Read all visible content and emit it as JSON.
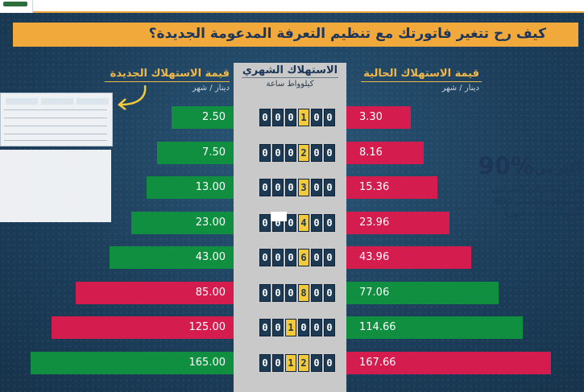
{
  "header": {
    "title": "كيف رح تتغير فاتورتك مع تنظيم التعرفة المدعومة الجديدة؟"
  },
  "columns": {
    "new_value": {
      "label": "قيمة الاستهلاك الجديدة",
      "unit": "دينار / شهر"
    },
    "monthly": {
      "label": "الاستهلاك الشهري",
      "unit": "كيلوواط ساعة"
    },
    "current_value": {
      "label": "قيمة الاستهلاك الحالية",
      "unit": "دينار / شهر"
    }
  },
  "callout": {
    "more_than": "أكثر من",
    "percent": "90%",
    "line1": "من المشتركين المنزليين",
    "line2": "يستهلكون أقل من 600",
    "line3": "كيلوواط ساعة شهرياً"
  },
  "colors": {
    "background": "#1d3f5c",
    "banner": "#f2a93b",
    "green": "#0f8f3f",
    "red": "#d41c4e",
    "header_text": "#f1b94a",
    "meter_highlight": "#f2ca3b"
  },
  "chart_data": {
    "type": "bar",
    "categories": [
      100,
      200,
      300,
      400,
      600,
      800,
      1000,
      1200
    ],
    "meter_labels": [
      "000100",
      "000200",
      "000300",
      "000400",
      "000600",
      "000800",
      "001000",
      "001200"
    ],
    "series": [
      {
        "name": "قيمة الاستهلاك الجديدة",
        "side": "left",
        "values": [
          2.5,
          7.5,
          13.0,
          23.0,
          43.0,
          85.0,
          125.0,
          165.0
        ],
        "labels": [
          "2.50",
          "7.50",
          "13.00",
          "23.00",
          "43.00",
          "85.00",
          "125.00",
          "165.00"
        ],
        "colors": [
          "#0f8f3f",
          "#0f8f3f",
          "#0f8f3f",
          "#0f8f3f",
          "#0f8f3f",
          "#d41c4e",
          "#d41c4e",
          "#0f8f3f"
        ]
      },
      {
        "name": "قيمة الاستهلاك الحالية",
        "side": "right",
        "values": [
          3.3,
          8.16,
          15.36,
          23.96,
          43.96,
          77.06,
          114.66,
          167.66
        ],
        "labels": [
          "3.30",
          "8.16",
          "15.36",
          "23.96",
          "43.96",
          "77.06",
          "114.66",
          "167.66"
        ],
        "colors": [
          "#d41c4e",
          "#d41c4e",
          "#d41c4e",
          "#d41c4e",
          "#d41c4e",
          "#0f8f3f",
          "#0f8f3f",
          "#d41c4e"
        ]
      }
    ],
    "xlim": [
      0,
      170
    ]
  }
}
